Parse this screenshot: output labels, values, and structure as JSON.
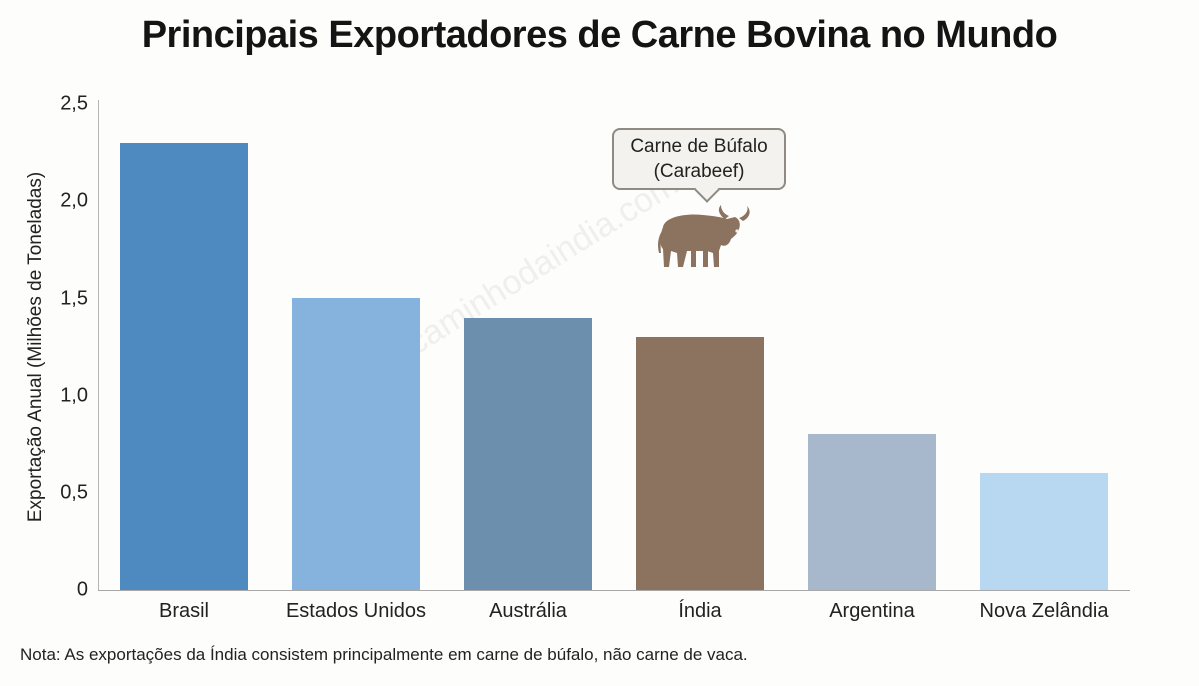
{
  "chart_data": {
    "type": "bar",
    "title": "Principais Exportadores de Carne Bovina no Mundo",
    "xlabel": "",
    "ylabel": "Exportação Anual (Milhões de Toneladas)",
    "ylim": [
      0,
      2.5
    ],
    "yticks": [
      "0",
      "0,5",
      "1,0",
      "1,5",
      "2,0",
      "2,5"
    ],
    "grid": false,
    "legend": null,
    "categories": [
      "Brasil",
      "Estados Unidos",
      "Austrália",
      "Índia",
      "Argentina",
      "Nova Zelândia"
    ],
    "values": [
      2.3,
      1.5,
      1.4,
      1.3,
      0.8,
      0.6
    ],
    "colors": [
      "#4e89c0",
      "#86b3de",
      "#6c8fad",
      "#8c7360",
      "#a7b8cc",
      "#b8d8f2"
    ],
    "annotations": [
      {
        "text": "Carne de Búfalo (Carabeef)",
        "target": "Índia",
        "icon": "buffalo-icon"
      }
    ]
  },
  "title": "Principais Exportadores de Carne Bovina no Mundo",
  "ylabel": "Exportação Anual (Milhões de Toneladas)",
  "yticks": [
    "0",
    "0,5",
    "1,0",
    "1,5",
    "2,0",
    "2,5"
  ],
  "categories": [
    "Brasil",
    "Estados Unidos",
    "Austrália",
    "Índia",
    "Argentina",
    "Nova Zelândia"
  ],
  "callout": {
    "line1": "Carne de Búfalo",
    "line2": "(Carabeef)"
  },
  "note": "Nota: As exportações da Índia consistem principalmente em carne de búfalo, não carne de vaca.",
  "watermark": "caminhodaindia.com"
}
